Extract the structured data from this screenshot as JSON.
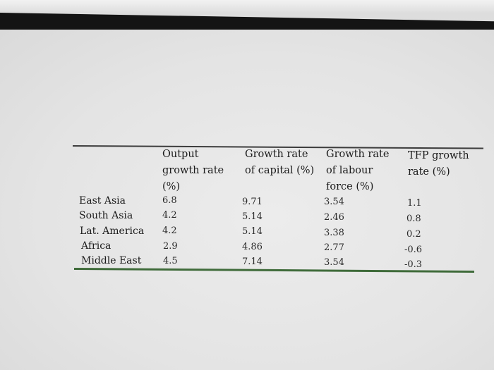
{
  "table": {
    "headers": {
      "output": [
        "Output",
        "growth rate",
        "(%)"
      ],
      "capital": [
        "Growth rate",
        "of capital (%)"
      ],
      "labour": [
        "Growth rate",
        "of labour",
        "force (%)"
      ],
      "tfp": [
        "TFP growth",
        "rate (%)"
      ]
    },
    "rows": [
      {
        "region": "East Asia",
        "output": "6.8",
        "capital": "9.71",
        "labour": "3.54",
        "tfp": "1.1"
      },
      {
        "region": "South Asia",
        "output": "4.2",
        "capital": "5.14",
        "labour": "2.46",
        "tfp": "0.8"
      },
      {
        "region": "Lat. America",
        "output": "4.2",
        "capital": "5.14",
        "labour": "3.38",
        "tfp": "0.2"
      },
      {
        "region": "Africa",
        "output": "2.9",
        "capital": "4.86",
        "labour": "2.77",
        "tfp": "-0.6"
      },
      {
        "region": "Middle East",
        "output": "4.5",
        "capital": "7.14",
        "labour": "3.54",
        "tfp": "-0.3"
      }
    ]
  }
}
